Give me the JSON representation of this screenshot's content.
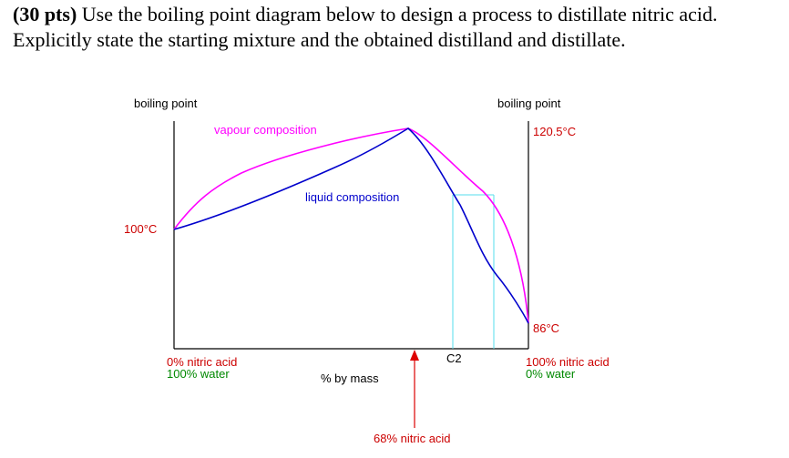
{
  "question": {
    "points": "(30 pts)",
    "text": " Use the boiling point diagram below to design a process to distillate nitric acid.  Explicitly state the starting mixture and the obtained distilland and distillate."
  },
  "diagram": {
    "left_axis_title": "boiling point",
    "right_axis_title": "boiling point",
    "left_temp": "100°C",
    "right_top_temp": "120.5°C",
    "right_bottom_temp": "86°C",
    "vapour_label": "vapour composition",
    "liquid_label": "liquid composition",
    "left_bottom_line1": "0% nitric acid",
    "left_bottom_line2": "100% water",
    "right_bottom_line1": "100% nitric acid",
    "right_bottom_line2": "0% water",
    "x_label": "% by mass",
    "c2_label": "C2",
    "azeotrope_label": "68% nitric acid",
    "colors": {
      "vapour": "#ff00ff",
      "liquid": "#0000cc",
      "guide": "#55ddee",
      "arrow": "#dd0000",
      "red_text": "#cc0000",
      "green_text": "#008800"
    }
  }
}
